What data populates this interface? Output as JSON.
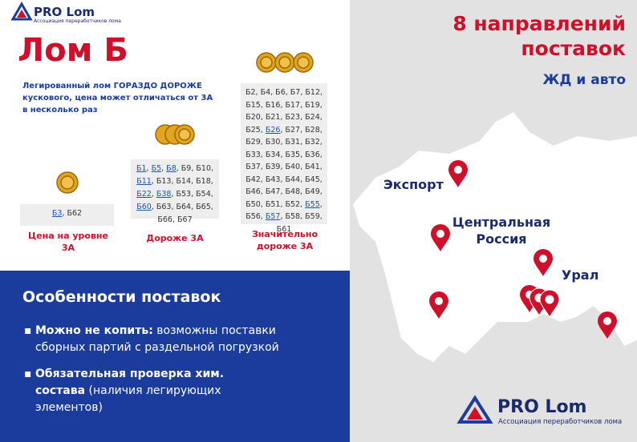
{
  "header": {
    "logo": {
      "brand": "PRO Lom",
      "tagline": "Ассоциация переработчиков лома"
    },
    "title": "Лом Б",
    "description": "Легированный лом ГОРАЗДО ДОРОЖЕ кускового, цена может отличаться от 3А в несколько раз"
  },
  "separator": ", ",
  "columns": [
    {
      "label": "Цена на уровне 3А",
      "items": [
        {
          "text": "Б3",
          "link": true
        },
        {
          "text": "Б62",
          "link": false
        }
      ]
    },
    {
      "label": "Дороже 3А",
      "items": [
        {
          "text": "Б1",
          "link": true
        },
        {
          "text": "Б5",
          "link": true
        },
        {
          "text": "Б8",
          "link": true
        },
        {
          "text": "Б9",
          "link": false
        },
        {
          "text": "Б10",
          "link": false
        },
        {
          "text": "Б11",
          "link": true
        },
        {
          "text": "Б13",
          "link": false
        },
        {
          "text": "Б14",
          "link": false
        },
        {
          "text": "Б18",
          "link": false
        },
        {
          "text": "Б22",
          "link": true
        },
        {
          "text": "Б38",
          "link": true
        },
        {
          "text": "Б53",
          "link": false
        },
        {
          "text": "Б54",
          "link": false
        },
        {
          "text": "Б60",
          "link": true
        },
        {
          "text": "Б63",
          "link": false
        },
        {
          "text": "Б64",
          "link": false
        },
        {
          "text": "Б65",
          "link": false
        },
        {
          "text": "Б66",
          "link": false
        },
        {
          "text": "Б67",
          "link": false
        }
      ]
    },
    {
      "label": "Значительно дороже 3А",
      "items": [
        {
          "text": "Б2",
          "link": false
        },
        {
          "text": "Б4",
          "link": false
        },
        {
          "text": "Б6",
          "link": false
        },
        {
          "text": "Б7",
          "link": false
        },
        {
          "text": "Б12",
          "link": false
        },
        {
          "text": "Б15",
          "link": false
        },
        {
          "text": "Б16",
          "link": false
        },
        {
          "text": "Б17",
          "link": false
        },
        {
          "text": "Б19",
          "link": false
        },
        {
          "text": "Б20",
          "link": false
        },
        {
          "text": "Б21",
          "link": false
        },
        {
          "text": "Б23",
          "link": false
        },
        {
          "text": "Б24",
          "link": false
        },
        {
          "text": "Б25",
          "link": false
        },
        {
          "text": "Б26",
          "link": true
        },
        {
          "text": "Б27",
          "link": false
        },
        {
          "text": "Б28",
          "link": false
        },
        {
          "text": "Б29",
          "link": false
        },
        {
          "text": "Б30",
          "link": false
        },
        {
          "text": "Б31",
          "link": false
        },
        {
          "text": "Б32",
          "link": false
        },
        {
          "text": "Б33",
          "link": false
        },
        {
          "text": "Б34",
          "link": false
        },
        {
          "text": "Б35",
          "link": false
        },
        {
          "text": "Б36",
          "link": false
        },
        {
          "text": "Б37",
          "link": false
        },
        {
          "text": "Б39",
          "link": false
        },
        {
          "text": "Б40",
          "link": false
        },
        {
          "text": "Б41",
          "link": false
        },
        {
          "text": "Б42",
          "link": false
        },
        {
          "text": "Б43",
          "link": false
        },
        {
          "text": "Б44",
          "link": false
        },
        {
          "text": "Б45",
          "link": false
        },
        {
          "text": "Б46",
          "link": false
        },
        {
          "text": "Б47",
          "link": false
        },
        {
          "text": "Б48",
          "link": false
        },
        {
          "text": "Б49",
          "link": false
        },
        {
          "text": "Б50",
          "link": false
        },
        {
          "text": "Б51",
          "link": false
        },
        {
          "text": "Б52",
          "link": false
        },
        {
          "text": "Б55",
          "link": true
        },
        {
          "text": "Б56",
          "link": false
        },
        {
          "text": "Б57",
          "link": true
        },
        {
          "text": "Б58",
          "link": false
        },
        {
          "text": "Б59",
          "link": false
        },
        {
          "text": "Б61",
          "link": false
        }
      ]
    }
  ],
  "features": {
    "title": "Особенности поставок",
    "items": [
      {
        "bold": "Можно не копить:",
        "text": "возможны поставки сборных партий с раздельной погрузкой"
      },
      {
        "bold": "Обязательная проверка хим. состава",
        "text": "(наличия легирующих элементов)"
      }
    ]
  },
  "delivery": {
    "title": "8 направлений поставок",
    "subtitle": "ЖД и авто",
    "regions": [
      "Экспорт",
      "Центральная Россия",
      "Урал"
    ]
  },
  "footer_logo": {
    "brand": "PRO Lom",
    "tagline": "Ассоциация переработчиков лома"
  }
}
